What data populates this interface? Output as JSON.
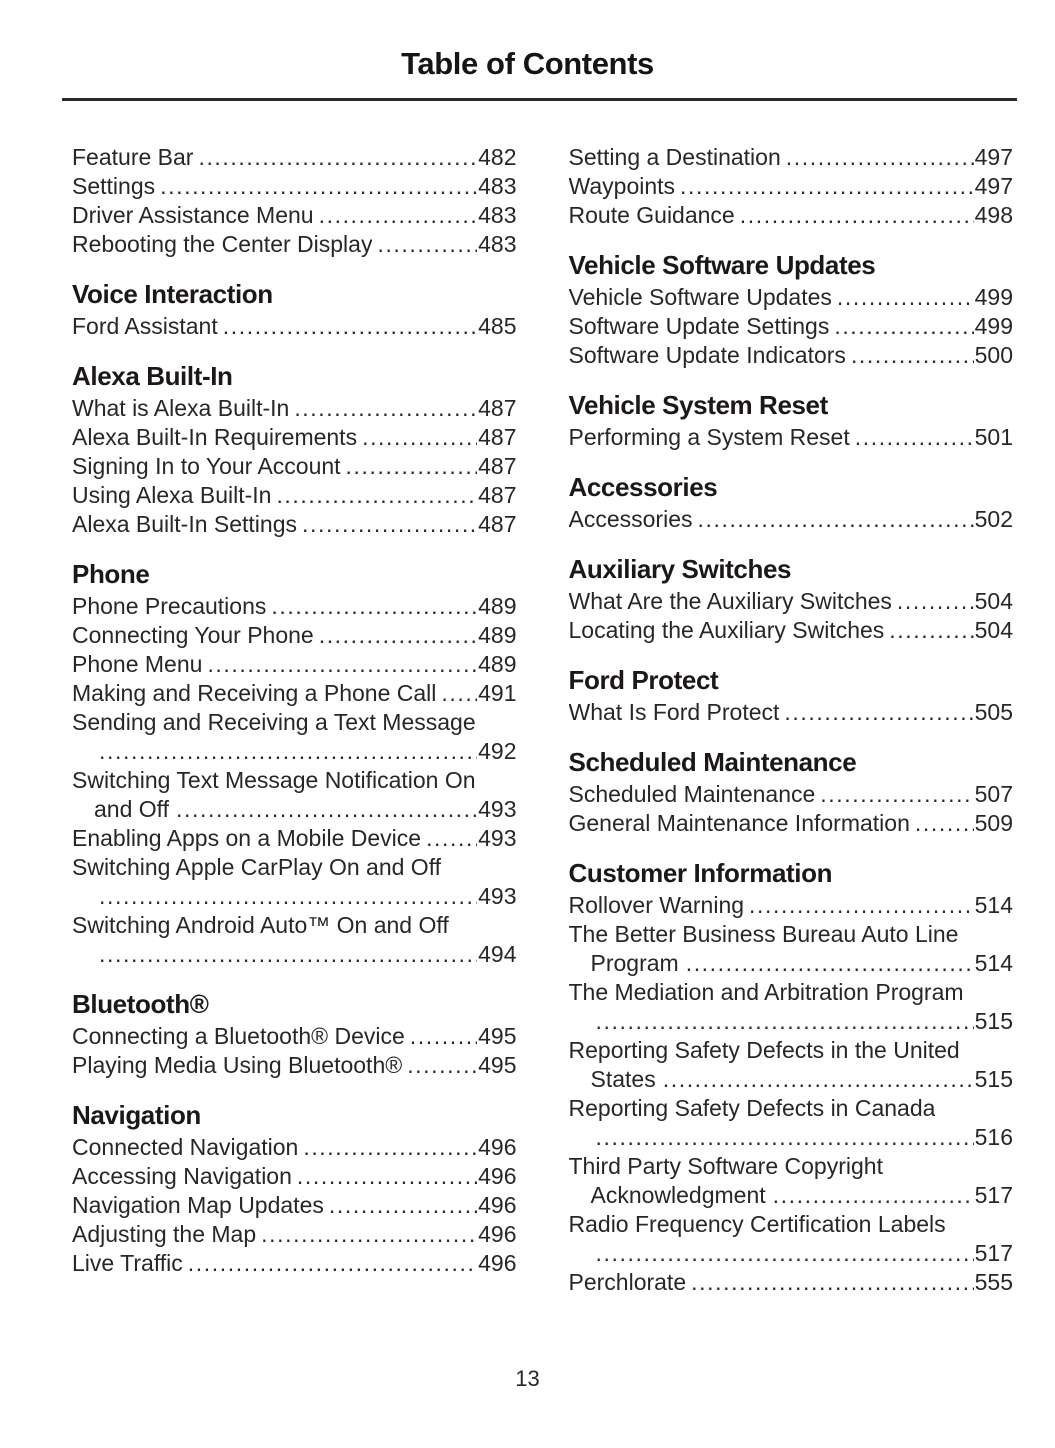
{
  "page": {
    "title": "Table of Contents",
    "page_number": "13"
  },
  "toc": {
    "left_sections": [
      {
        "header": "",
        "entries": [
          {
            "label": "Feature Bar",
            "page": "482"
          },
          {
            "label": "Settings",
            "page": "483"
          },
          {
            "label": "Driver Assistance Menu",
            "page": "483"
          },
          {
            "label": "Rebooting the Center Display",
            "page": "483"
          }
        ]
      },
      {
        "header": "Voice Interaction",
        "entries": [
          {
            "label": "Ford Assistant",
            "page": "485"
          }
        ]
      },
      {
        "header": "Alexa Built-In",
        "entries": [
          {
            "label": "What is Alexa Built-In",
            "page": "487"
          },
          {
            "label": "Alexa Built-In Requirements",
            "page": "487"
          },
          {
            "label": "Signing In to Your Account",
            "page": "487"
          },
          {
            "label": "Using Alexa Built-In",
            "page": "487"
          },
          {
            "label": "Alexa Built-In Settings",
            "page": "487"
          }
        ]
      },
      {
        "header": "Phone",
        "entries": [
          {
            "label": "Phone Precautions",
            "page": "489"
          },
          {
            "label": "Connecting Your Phone",
            "page": "489"
          },
          {
            "label": "Phone Menu",
            "page": "489"
          },
          {
            "label": "Making and Receiving a Phone Call",
            "page": "491"
          },
          {
            "label": "Sending and Receiving a Text Message",
            "page": "492",
            "wrap": true,
            "cont": ""
          },
          {
            "label": "Switching Text Message Notification On",
            "page": "493",
            "wrap": true,
            "cont": "and Off"
          },
          {
            "label": "Enabling Apps on a Mobile Device",
            "page": "493"
          },
          {
            "label": "Switching Apple CarPlay On and Off",
            "page": "493",
            "wrap": true,
            "cont": ""
          },
          {
            "label": "Switching Android Auto™ On and Off",
            "page": "494",
            "wrap": true,
            "cont": ""
          }
        ]
      },
      {
        "header": "Bluetooth®",
        "entries": [
          {
            "label": "Connecting a Bluetooth® Device",
            "page": "495"
          },
          {
            "label": "Playing Media Using Bluetooth®",
            "page": "495"
          }
        ]
      },
      {
        "header": "Navigation",
        "entries": [
          {
            "label": "Connected Navigation",
            "page": "496"
          },
          {
            "label": "Accessing Navigation",
            "page": "496"
          },
          {
            "label": "Navigation Map Updates",
            "page": "496"
          },
          {
            "label": "Adjusting the Map",
            "page": "496"
          },
          {
            "label": "Live Traffic",
            "page": "496"
          }
        ]
      }
    ],
    "right_sections": [
      {
        "header": "",
        "entries": [
          {
            "label": "Setting a Destination",
            "page": "497"
          },
          {
            "label": "Waypoints",
            "page": "497"
          },
          {
            "label": "Route Guidance",
            "page": "498"
          }
        ]
      },
      {
        "header": "Vehicle Software Updates",
        "entries": [
          {
            "label": "Vehicle Software Updates",
            "page": "499"
          },
          {
            "label": "Software Update Settings",
            "page": "499"
          },
          {
            "label": "Software Update Indicators",
            "page": "500"
          }
        ]
      },
      {
        "header": "Vehicle System Reset",
        "entries": [
          {
            "label": "Performing a System Reset",
            "page": "501"
          }
        ]
      },
      {
        "header": "Accessories",
        "entries": [
          {
            "label": "Accessories",
            "page": "502"
          }
        ]
      },
      {
        "header": "Auxiliary Switches",
        "entries": [
          {
            "label": "What Are the Auxiliary Switches",
            "page": "504"
          },
          {
            "label": "Locating the Auxiliary Switches",
            "page": "504"
          }
        ]
      },
      {
        "header": "Ford Protect",
        "entries": [
          {
            "label": "What Is Ford Protect",
            "page": "505"
          }
        ]
      },
      {
        "header": "Scheduled Maintenance",
        "entries": [
          {
            "label": "Scheduled Maintenance",
            "page": "507"
          },
          {
            "label": "General Maintenance Information",
            "page": "509"
          }
        ]
      },
      {
        "header": "Customer Information",
        "entries": [
          {
            "label": "Rollover Warning",
            "page": "514"
          },
          {
            "label": "The Better Business Bureau Auto Line",
            "page": "514",
            "wrap": true,
            "cont": "Program"
          },
          {
            "label": "The Mediation and Arbitration Program",
            "page": "515",
            "wrap": true,
            "cont": ""
          },
          {
            "label": "Reporting Safety Defects in the United",
            "page": "515",
            "wrap": true,
            "cont": "States"
          },
          {
            "label": "Reporting Safety Defects in Canada",
            "page": "516",
            "wrap": true,
            "cont": ""
          },
          {
            "label": "Third Party Software Copyright",
            "page": "517",
            "wrap": true,
            "cont": "Acknowledgment"
          },
          {
            "label": "Radio Frequency Certification Labels",
            "page": "517",
            "wrap": true,
            "cont": ""
          },
          {
            "label": "Perchlorate",
            "page": "555"
          }
        ]
      }
    ]
  }
}
